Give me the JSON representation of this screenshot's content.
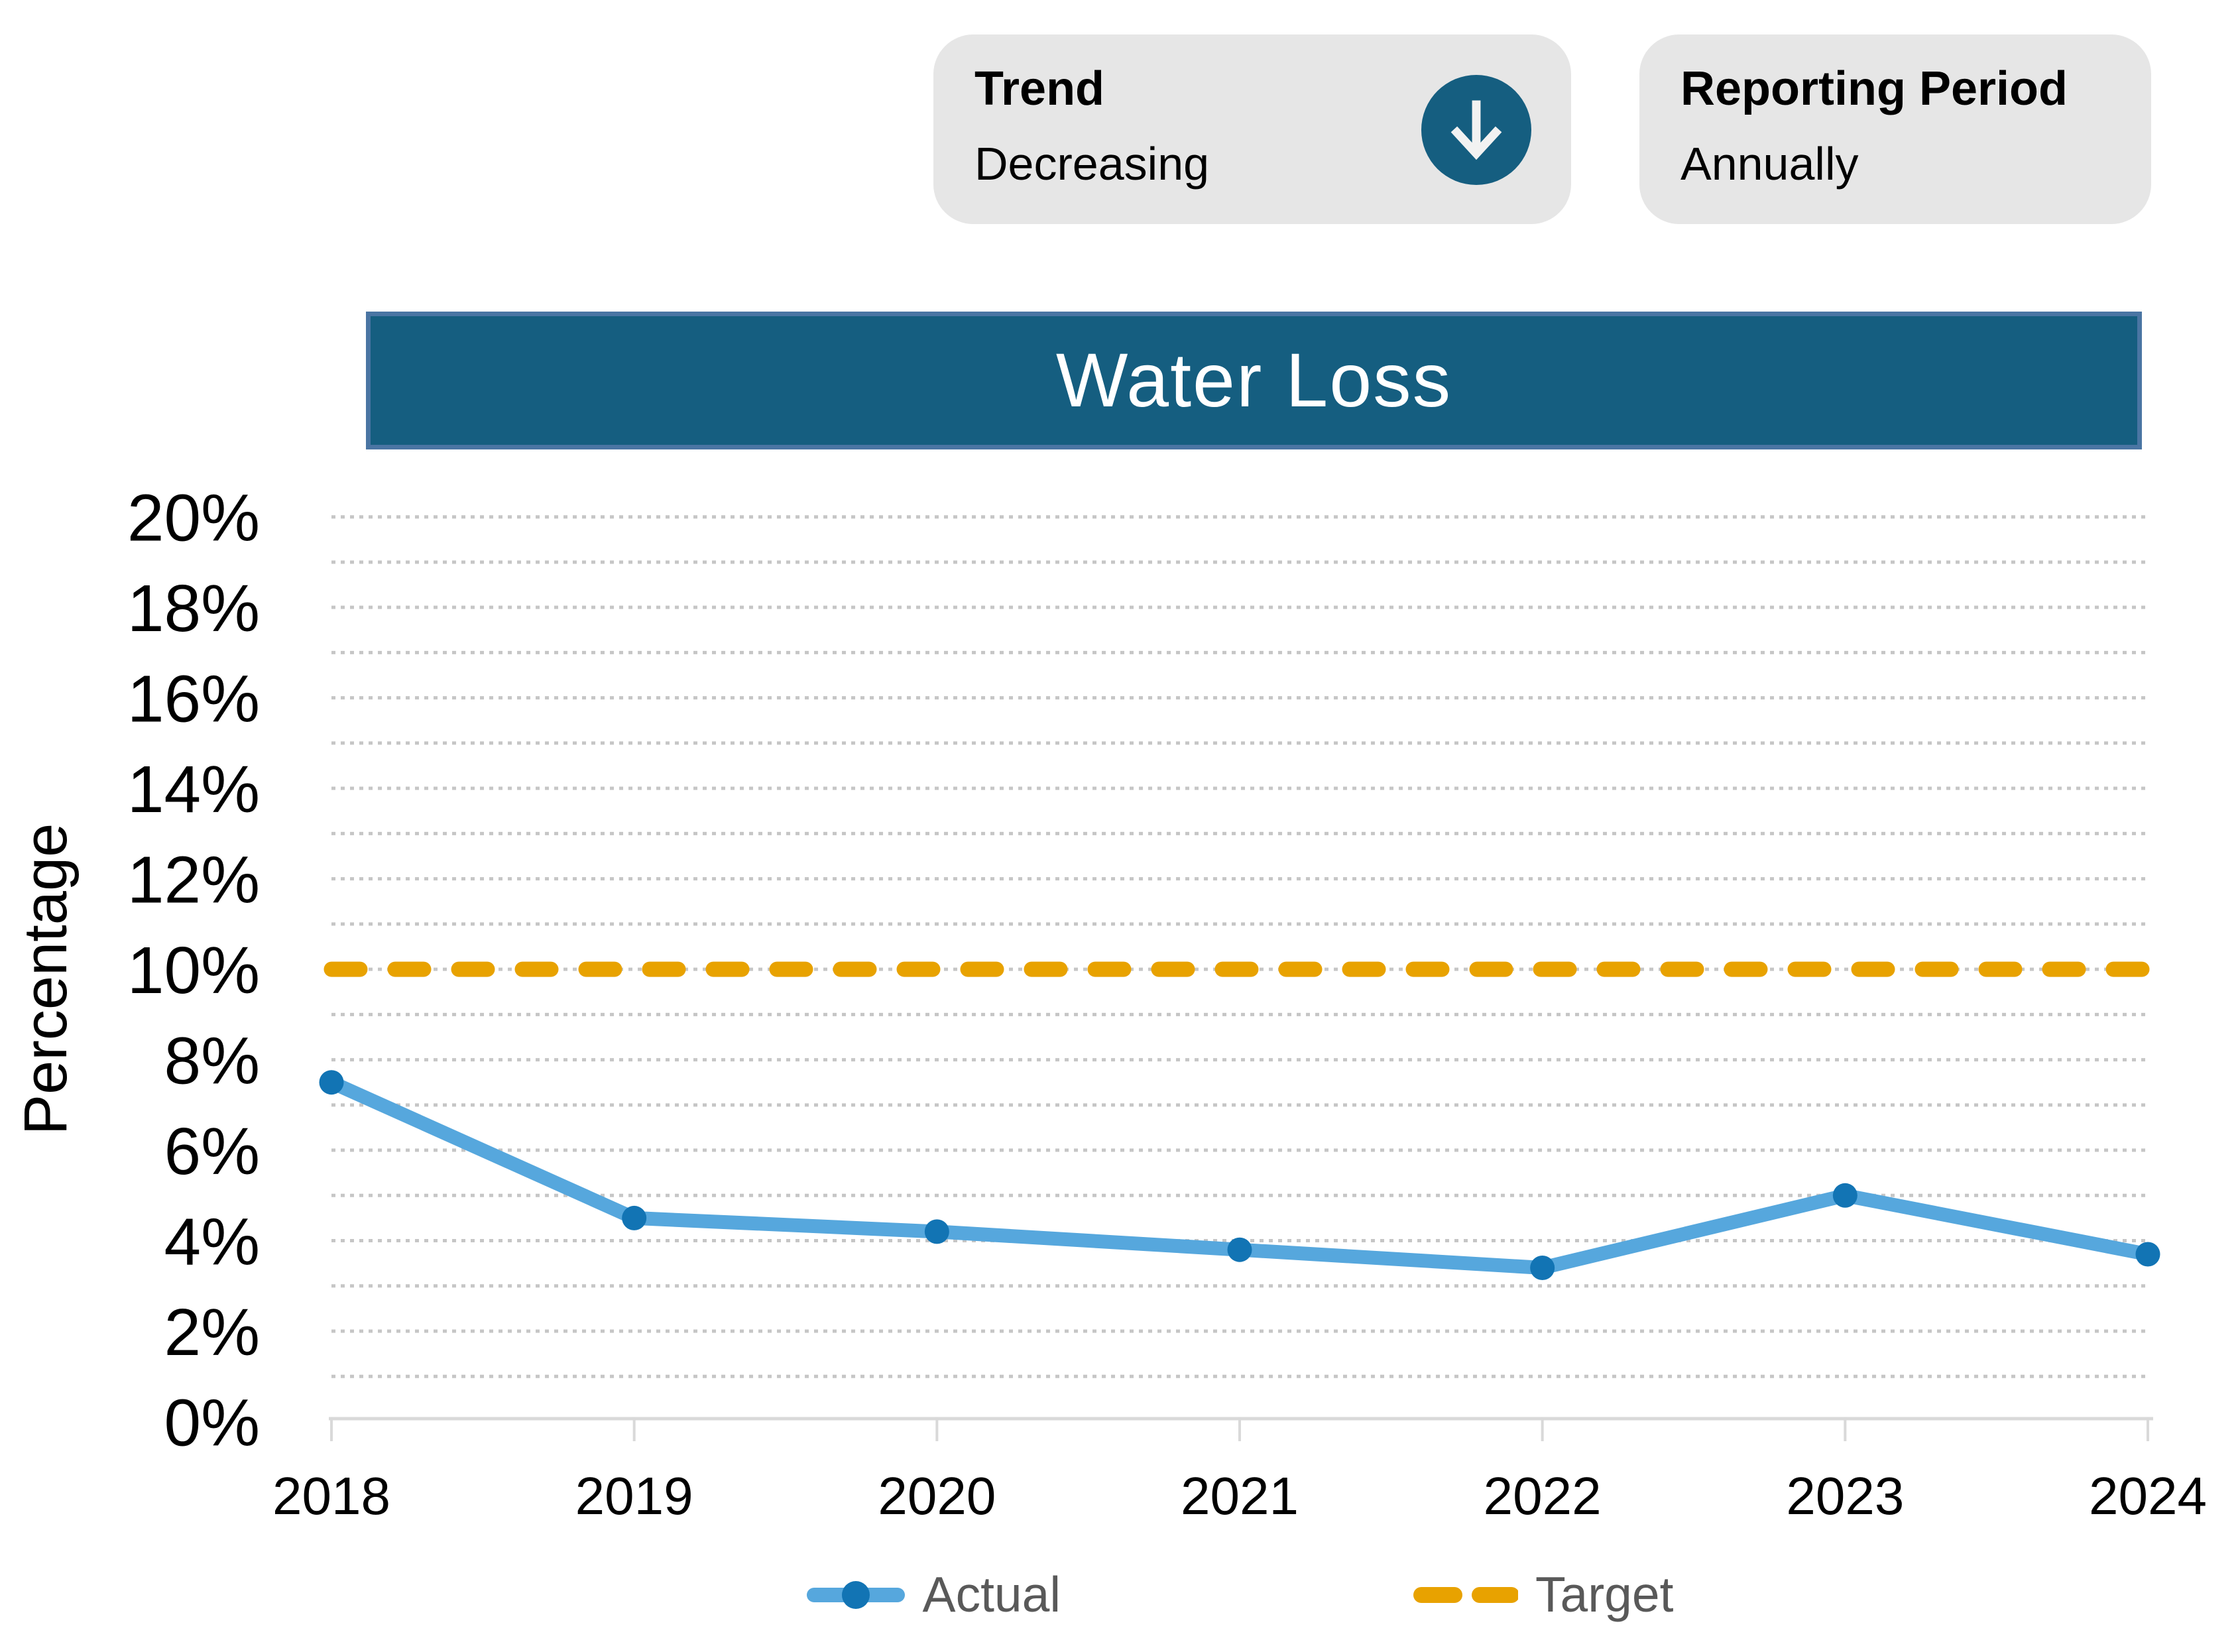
{
  "header": {
    "trend": {
      "label": "Trend",
      "value": "Decreasing",
      "icon": "arrow-down-circle"
    },
    "reporting_period": {
      "label": "Reporting Period",
      "value": "Annually"
    }
  },
  "title_bar": {
    "text": "Water Loss"
  },
  "legend": [
    {
      "label": "Actual"
    },
    {
      "label": "Target"
    }
  ],
  "chart_data": {
    "type": "line",
    "title": "Water Loss",
    "ylabel": "Percentage",
    "categories": [
      "2018",
      "2019",
      "2020",
      "2021",
      "2022",
      "2023",
      "2024"
    ],
    "series": [
      {
        "name": "Actual",
        "style": "solid-with-markers",
        "values": [
          7.5,
          4.5,
          4.2,
          3.8,
          3.4,
          5.0,
          3.7
        ]
      },
      {
        "name": "Target",
        "style": "dashed",
        "values": [
          10,
          10,
          10,
          10,
          10,
          10,
          10
        ]
      }
    ],
    "ylim": [
      0,
      20
    ],
    "ytick_step": 2,
    "ytick_suffix": "%",
    "grid": "dotted horizontal line every 1%",
    "legend_position": "bottom"
  },
  "colors": {
    "teal": "#155E80",
    "teal_border": "#4A75A3",
    "box_bg": "#E6E6E6",
    "actual_line": "#56A7DD",
    "actual_marker": "#1274B4",
    "target": "#E8A200",
    "gridline": "#C6C6C6",
    "axis_line": "#D9D9D9",
    "tick_text": "#000000",
    "legend_text": "#595959",
    "icon_arrow": "#F2F2F2",
    "title_text": "#FFFFFF"
  }
}
